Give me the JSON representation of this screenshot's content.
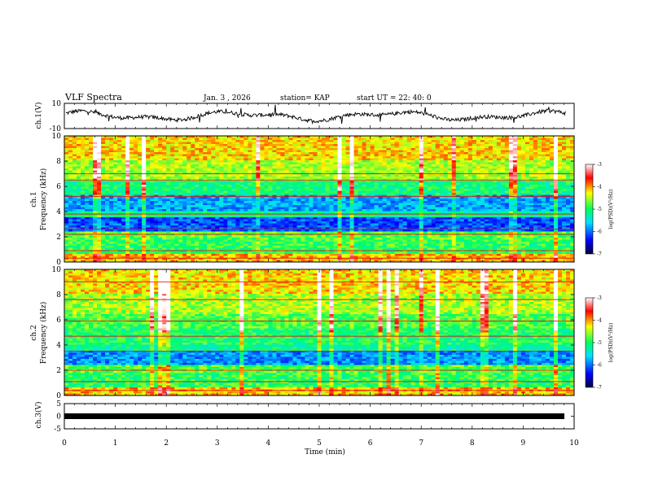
{
  "chart_data": {
    "type": "heatmap",
    "title": "VLF Spectra",
    "header": {
      "date": "Jan. 3 , 2026",
      "station": "station= KAP",
      "start": "start UT = 22: 40: 0"
    },
    "x": {
      "label": "Time (min)",
      "range": [
        0,
        10
      ],
      "ticks": [
        "0",
        "1",
        "2",
        "3",
        "4",
        "5",
        "6",
        "7",
        "8",
        "9",
        "10"
      ]
    },
    "panels": [
      {
        "type": "line",
        "ylabel": "ch.1(V)",
        "ylim": [
          -10,
          10
        ],
        "ticks": [
          "10",
          "-10"
        ]
      },
      {
        "type": "heatmap",
        "ylabel_top": "ch.1",
        "ylabel": "Frequency (kHz)",
        "ylim": [
          0,
          10
        ],
        "ticks": [
          "0",
          "2",
          "4",
          "6",
          "8",
          "10"
        ],
        "colorbar": {
          "range": [
            -7,
            -3
          ],
          "ticks": [
            "-3",
            "-4",
            "-5",
            "-6",
            "-7"
          ],
          "label": "log(PSD)(V²/Hz)"
        }
      },
      {
        "type": "heatmap",
        "ylabel_top": "ch.2",
        "ylabel": "Frequency (kHz)",
        "ylim": [
          0,
          10
        ],
        "ticks": [
          "0",
          "2",
          "4",
          "6",
          "8",
          "10"
        ],
        "colorbar": {
          "range": [
            -7,
            -3
          ],
          "ticks": [
            "-3",
            "-4",
            "-5",
            "-6",
            "-7"
          ],
          "label": "log(PSD)(V²/Hz)"
        }
      },
      {
        "type": "line",
        "ylabel": "ch.3(V)",
        "ylim": [
          -5,
          5
        ],
        "ticks": [
          "5",
          "0",
          "-5"
        ],
        "level": 0
      }
    ]
  },
  "colors": {
    "scale": [
      "#000080",
      "#0000ff",
      "#00bfff",
      "#00ff80",
      "#ffff00",
      "#ff0000",
      "#ffffff"
    ]
  }
}
